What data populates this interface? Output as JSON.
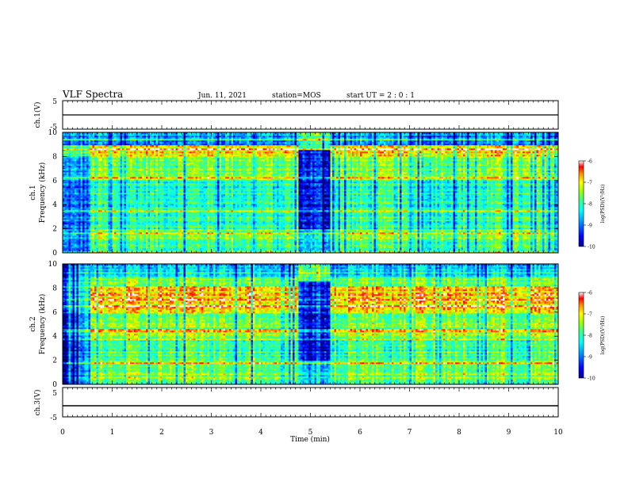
{
  "header": {
    "title": "VLF Spectra",
    "date": "Jun. 11, 2021",
    "station": "station=MOS",
    "start_ut": "start UT =  2 : 0 : 1"
  },
  "chart_data": [
    {
      "type": "line",
      "panel": "ch1-voltage",
      "ylabel": "ch.1(V)",
      "ylim": [
        -5,
        5
      ],
      "yticks": [
        "5",
        "-5"
      ],
      "xlim": [
        0,
        10
      ],
      "series": [
        {
          "x": [
            0,
            10
          ],
          "values": [
            0,
            0
          ]
        }
      ]
    },
    {
      "type": "heatmap",
      "panel": "ch1-spectrogram",
      "ylabel": "ch.1\nFrequency (kHz)",
      "ylabel_line1": "ch.1",
      "ylabel_line2": "Frequency (kHz)",
      "ylim": [
        0,
        10
      ],
      "yticks": [
        "0",
        "2",
        "4",
        "6",
        "8",
        "10"
      ],
      "xlim": [
        0,
        10
      ],
      "colorbar": {
        "label": "log(PSD)(V²/Hz)",
        "range": [
          -10,
          -6
        ],
        "ticks": [
          "-6",
          "-7",
          "-8",
          "-9",
          "-10"
        ]
      },
      "data_gaps_min": [
        [
          4.75,
          5.4
        ]
      ],
      "low_activity_min": [
        [
          0,
          0.58
        ]
      ]
    },
    {
      "type": "heatmap",
      "panel": "ch2-spectrogram",
      "ylabel": "ch.2\nFrequency (kHz)",
      "ylabel_line1": "ch.2",
      "ylabel_line2": "Frequency (kHz)",
      "ylim": [
        0,
        10
      ],
      "yticks": [
        "0",
        "2",
        "4",
        "6",
        "8",
        "10"
      ],
      "xlim": [
        0,
        10
      ],
      "colorbar": {
        "label": "log(PSD)(V²/Hz)",
        "range": [
          -10,
          -6
        ],
        "ticks": [
          "-6",
          "-7",
          "-8",
          "-9",
          "-10"
        ]
      },
      "data_gaps_min": [
        [
          4.75,
          5.4
        ]
      ],
      "low_activity_min": [
        [
          0,
          0.58
        ]
      ]
    },
    {
      "type": "line",
      "panel": "ch3-voltage",
      "ylabel": "ch.3(V)",
      "ylim": [
        -5,
        5
      ],
      "yticks": [
        "5",
        "-5"
      ],
      "xlim": [
        0,
        10
      ],
      "xlabel": "Time (min)",
      "xticks": [
        "0",
        "1",
        "2",
        "3",
        "4",
        "5",
        "6",
        "7",
        "8",
        "9",
        "10"
      ],
      "series": [
        {
          "x": [
            0,
            10
          ],
          "values": [
            0,
            0
          ]
        }
      ]
    }
  ],
  "colors": {
    "axis": "#000000",
    "colormap": [
      "#00008f",
      "#0000ff",
      "#00aaff",
      "#00ffff",
      "#55ff88",
      "#aaff00",
      "#ffff00",
      "#ff9900",
      "#ff0000",
      "#ffffff"
    ]
  }
}
